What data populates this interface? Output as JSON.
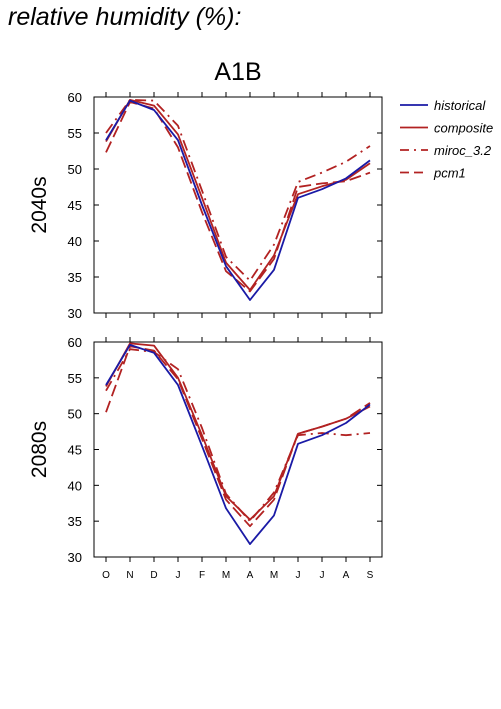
{
  "page_title": "relative humidity (%):",
  "chart_data": {
    "type": "line",
    "title": "A1B",
    "categories": [
      "O",
      "N",
      "D",
      "J",
      "F",
      "M",
      "A",
      "M",
      "J",
      "J",
      "A",
      "S"
    ],
    "ylim": [
      30,
      60
    ],
    "yticks": [
      30,
      35,
      40,
      45,
      50,
      55,
      60
    ],
    "grid": false,
    "legend_position": "right",
    "legend": [
      {
        "name": "historical",
        "color": "#1a1aa6",
        "dash": "solid"
      },
      {
        "name": "composite",
        "color": "#b22222",
        "dash": "solid"
      },
      {
        "name": "miroc_3.2",
        "color": "#b22222",
        "dash": "dashdot"
      },
      {
        "name": "pcm1",
        "color": "#b22222",
        "dash": "dashed"
      }
    ],
    "panels": [
      {
        "label": "2040s",
        "series": [
          {
            "name": "historical",
            "values": [
              54.0,
              59.5,
              58.2,
              54.0,
              45.0,
              36.5,
              31.8,
              36.0,
              46.0,
              47.2,
              48.7,
              51.2
            ]
          },
          {
            "name": "composite",
            "values": [
              53.8,
              59.6,
              58.8,
              54.8,
              46.0,
              37.0,
              33.2,
              38.0,
              46.5,
              47.6,
              48.5,
              50.8
            ]
          },
          {
            "name": "miroc_3.2",
            "values": [
              55.0,
              59.6,
              59.5,
              56.0,
              47.0,
              37.8,
              34.5,
              39.5,
              48.2,
              49.5,
              51.0,
              53.2
            ]
          },
          {
            "name": "pcm1",
            "values": [
              52.3,
              59.3,
              58.4,
              53.0,
              44.0,
              35.8,
              33.0,
              37.5,
              47.5,
              48.0,
              48.3,
              49.5
            ]
          }
        ]
      },
      {
        "label": "2080s",
        "series": [
          {
            "name": "historical",
            "values": [
              54.0,
              59.6,
              58.5,
              54.0,
              45.5,
              36.8,
              31.8,
              35.8,
              45.8,
              47.0,
              48.7,
              51.3
            ]
          },
          {
            "name": "composite",
            "values": [
              53.8,
              59.8,
              59.5,
              55.0,
              47.0,
              38.5,
              35.2,
              38.5,
              47.2,
              48.2,
              49.3,
              51.0
            ]
          },
          {
            "name": "miroc_3.2",
            "values": [
              53.2,
              59.0,
              58.6,
              56.2,
              48.0,
              38.8,
              35.0,
              39.0,
              47.0,
              47.3,
              47.0,
              47.3
            ]
          },
          {
            "name": "pcm1",
            "values": [
              50.2,
              59.4,
              58.8,
              54.8,
              46.5,
              38.0,
              34.3,
              38.0,
              47.2,
              48.2,
              49.3,
              51.5
            ]
          }
        ]
      }
    ]
  }
}
